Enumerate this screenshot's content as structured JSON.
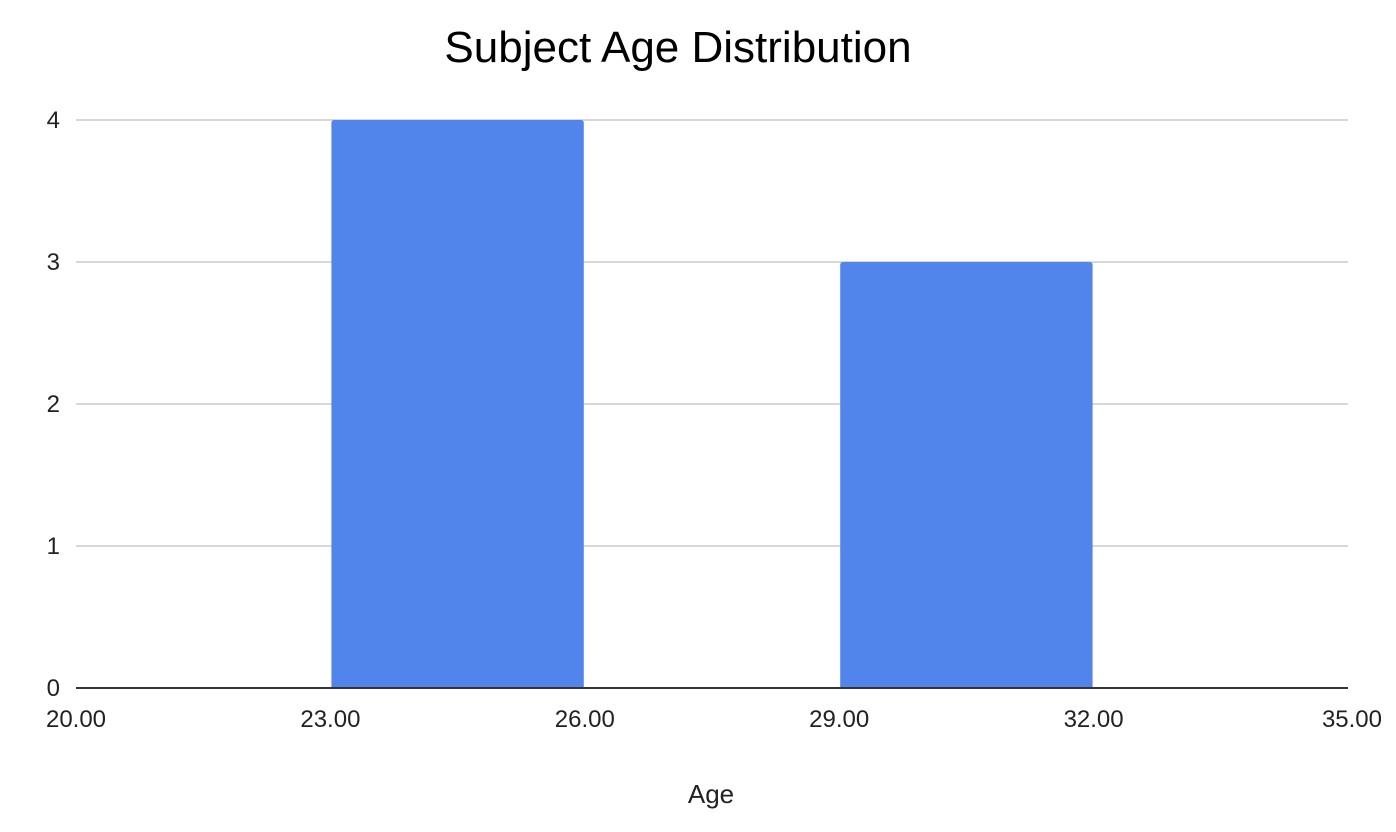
{
  "chart_data": {
    "type": "bar",
    "title": "Subject Age Distribution",
    "xlabel": "Age",
    "ylabel": "",
    "x_ticks": [
      "20.00",
      "23.00",
      "26.00",
      "29.00",
      "32.00",
      "35.00"
    ],
    "y_ticks": [
      "0",
      "1",
      "2",
      "3",
      "4"
    ],
    "xlim": [
      20,
      35
    ],
    "ylim": [
      0,
      4
    ],
    "bins": [
      {
        "start": 23,
        "end": 26,
        "value": 4
      },
      {
        "start": 29,
        "end": 32,
        "value": 3
      }
    ],
    "grid": true,
    "legend": "none",
    "bar_color": "#5285EC"
  }
}
